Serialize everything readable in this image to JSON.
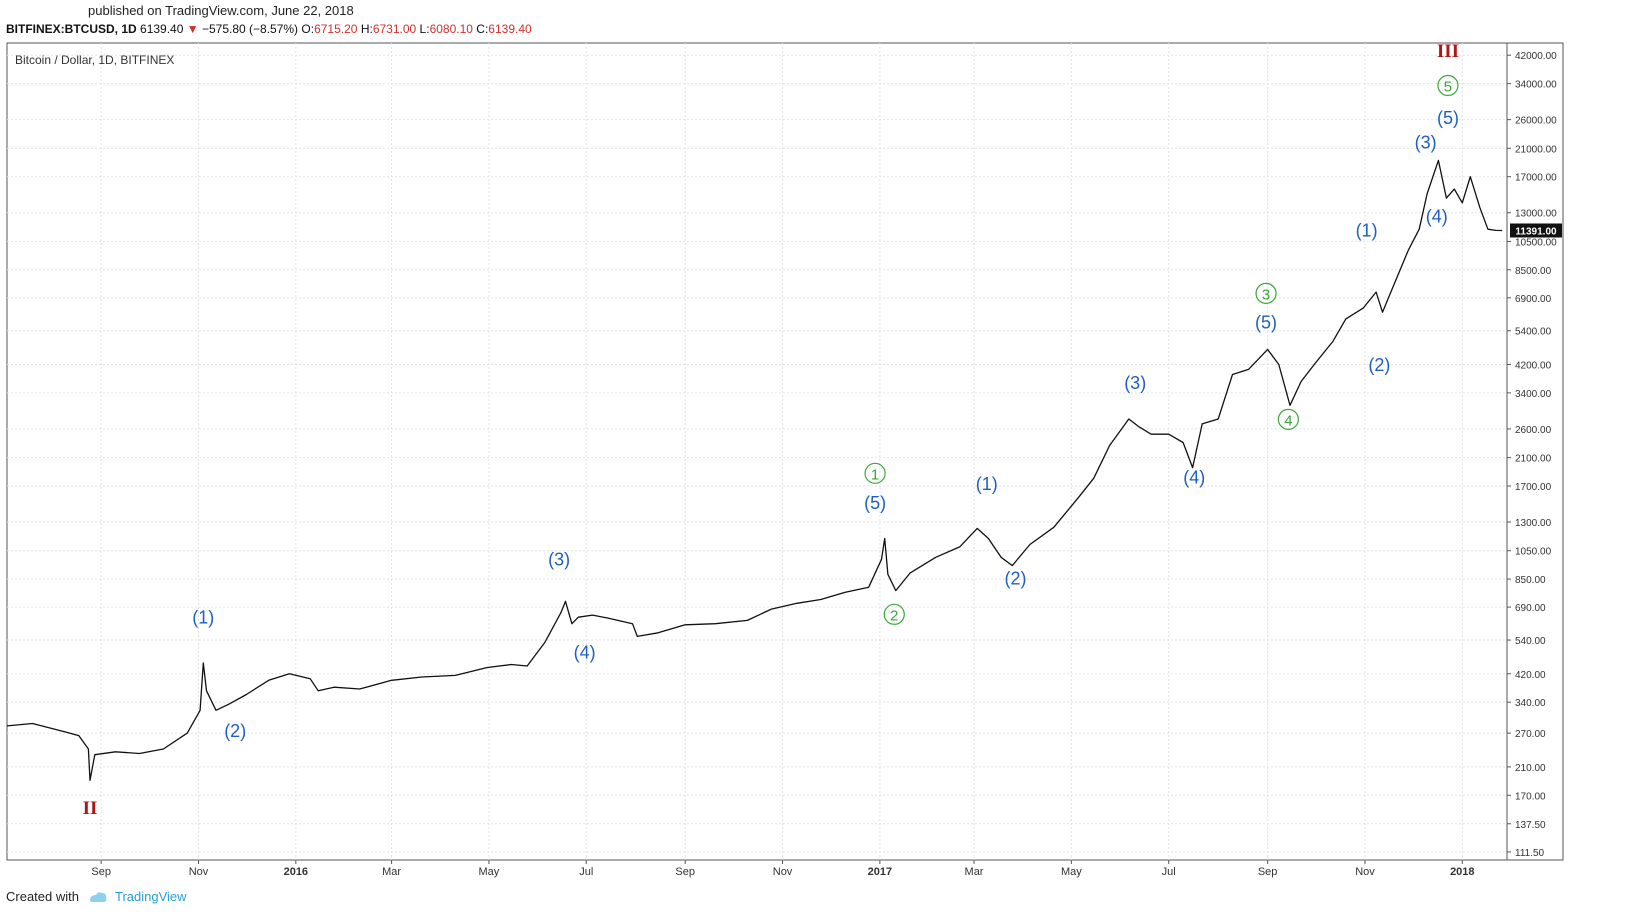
{
  "header": {
    "published": "published on TradingView.com, June 22, 2018",
    "symbol": "BITFINEX:BTCUSD, 1D",
    "last": "6139.40",
    "change": "−575.80 (−8.57%)",
    "o_label": "O:",
    "o_val": "6715.20",
    "h_label": "H:",
    "h_val": "6731.00",
    "l_label": "L:",
    "l_val": "6080.10",
    "c_label": "C:",
    "c_val": "6139.40"
  },
  "footer": {
    "created_with": "Created with",
    "brand": "TradingView"
  },
  "chart_data": {
    "type": "line",
    "title": "Bitcoin / Dollar, 1D, BITFINEX",
    "y_scale": "log",
    "ylim": [
      105,
      46000
    ],
    "xlim": [
      "2015-07-04",
      "2018-01-29"
    ],
    "y_ticks": [
      42000,
      34000,
      26000,
      21000,
      17000,
      13000,
      10500,
      8500,
      6900,
      5400,
      4200,
      3400,
      2600,
      2100,
      1700,
      1300,
      1050,
      850,
      690,
      540,
      420,
      340,
      270,
      210,
      170,
      137.5,
      111.5
    ],
    "y_tick_labels": [
      "42000.00",
      "34000.00",
      "26000.00",
      "21000.00",
      "17000.00",
      "13000.00",
      "10500.00",
      "8500.00",
      "6900.00",
      "5400.00",
      "4200.00",
      "3400.00",
      "2600.00",
      "2100.00",
      "1700.00",
      "1300.00",
      "1050.00",
      "850.00",
      "690.00",
      "540.00",
      "420.00",
      "340.00",
      "270.00",
      "210.00",
      "170.00",
      "137.50",
      "111.50"
    ],
    "x_ticks": [
      {
        "date": "2015-09-01",
        "label": "Sep",
        "bold": false
      },
      {
        "date": "2015-11-01",
        "label": "Nov",
        "bold": false
      },
      {
        "date": "2016-01-01",
        "label": "2016",
        "bold": true
      },
      {
        "date": "2016-03-01",
        "label": "Mar",
        "bold": false
      },
      {
        "date": "2016-05-01",
        "label": "May",
        "bold": false
      },
      {
        "date": "2016-07-01",
        "label": "Jul",
        "bold": false
      },
      {
        "date": "2016-09-01",
        "label": "Sep",
        "bold": false
      },
      {
        "date": "2016-11-01",
        "label": "Nov",
        "bold": false
      },
      {
        "date": "2017-01-01",
        "label": "2017",
        "bold": true
      },
      {
        "date": "2017-03-01",
        "label": "Mar",
        "bold": false
      },
      {
        "date": "2017-05-01",
        "label": "May",
        "bold": false
      },
      {
        "date": "2017-07-01",
        "label": "Jul",
        "bold": false
      },
      {
        "date": "2017-09-01",
        "label": "Sep",
        "bold": false
      },
      {
        "date": "2017-11-01",
        "label": "Nov",
        "bold": false
      },
      {
        "date": "2018-01-01",
        "label": "2018",
        "bold": true
      }
    ],
    "grid": true,
    "last_price_label": "11391.00",
    "last_price": 11391,
    "series": [
      {
        "x": [
          "2015-07-04",
          "2015-07-20",
          "2015-08-10",
          "2015-08-18",
          "2015-08-24",
          "2015-08-25",
          "2015-08-28",
          "2015-09-10",
          "2015-09-25",
          "2015-10-10",
          "2015-10-25",
          "2015-11-02",
          "2015-11-04",
          "2015-11-06",
          "2015-11-12",
          "2015-11-20",
          "2015-12-01",
          "2015-12-15",
          "2015-12-28",
          "2016-01-10",
          "2016-01-15",
          "2016-01-25",
          "2016-02-10",
          "2016-03-01",
          "2016-03-20",
          "2016-04-10",
          "2016-04-30",
          "2016-05-15",
          "2016-05-25",
          "2016-06-05",
          "2016-06-15",
          "2016-06-18",
          "2016-06-22",
          "2016-06-26",
          "2016-07-05",
          "2016-07-15",
          "2016-07-30",
          "2016-08-02",
          "2016-08-15",
          "2016-09-01",
          "2016-09-20",
          "2016-10-10",
          "2016-10-25",
          "2016-11-10",
          "2016-11-25",
          "2016-12-10",
          "2016-12-25",
          "2017-01-02",
          "2017-01-04",
          "2017-01-06",
          "2017-01-11",
          "2017-01-20",
          "2017-02-05",
          "2017-02-20",
          "2017-03-03",
          "2017-03-10",
          "2017-03-18",
          "2017-03-25",
          "2017-04-05",
          "2017-04-20",
          "2017-05-05",
          "2017-05-15",
          "2017-05-25",
          "2017-06-06",
          "2017-06-12",
          "2017-06-20",
          "2017-07-01",
          "2017-07-10",
          "2017-07-16",
          "2017-07-22",
          "2017-08-01",
          "2017-08-10",
          "2017-08-20",
          "2017-09-01",
          "2017-09-08",
          "2017-09-15",
          "2017-09-22",
          "2017-10-01",
          "2017-10-12",
          "2017-10-20",
          "2017-10-31",
          "2017-11-08",
          "2017-11-12",
          "2017-11-20",
          "2017-11-28",
          "2017-12-05",
          "2017-12-10",
          "2017-12-17",
          "2017-12-22",
          "2017-12-27",
          "2018-01-01",
          "2018-01-06",
          "2018-01-12",
          "2018-01-17",
          "2018-01-22",
          "2018-01-26"
        ],
        "y": [
          285,
          290,
          272,
          265,
          240,
          190,
          230,
          235,
          232,
          240,
          270,
          320,
          455,
          370,
          320,
          335,
          360,
          400,
          420,
          405,
          370,
          380,
          375,
          400,
          410,
          415,
          440,
          450,
          445,
          530,
          660,
          720,
          610,
          640,
          650,
          635,
          610,
          555,
          570,
          605,
          610,
          625,
          680,
          710,
          730,
          770,
          800,
          985,
          1150,
          880,
          780,
          890,
          1000,
          1080,
          1240,
          1150,
          1000,
          940,
          1100,
          1250,
          1550,
          1800,
          2300,
          2800,
          2650,
          2500,
          2500,
          2350,
          1950,
          2700,
          2800,
          3900,
          4050,
          4700,
          4200,
          3100,
          3700,
          4250,
          5000,
          5900,
          6400,
          7200,
          6200,
          7800,
          9800,
          11500,
          15000,
          19200,
          14500,
          15500,
          14000,
          17000,
          13500,
          11500,
          11400,
          11391
        ]
      }
    ],
    "annotations": [
      {
        "text": "(1)",
        "date": "2015-11-04",
        "price": 610,
        "style": "blue"
      },
      {
        "text": "(2)",
        "date": "2015-11-24",
        "price": 262,
        "style": "blue"
      },
      {
        "text": "(3)",
        "date": "2016-06-14",
        "price": 940,
        "style": "blue"
      },
      {
        "text": "(4)",
        "date": "2016-06-30",
        "price": 470,
        "style": "blue"
      },
      {
        "text": "(5)",
        "date": "2016-12-29",
        "price": 1435,
        "style": "blue"
      },
      {
        "text": "1",
        "date": "2016-12-29",
        "price": 1800,
        "style": "green"
      },
      {
        "text": "2",
        "date": "2017-01-10",
        "price": 630,
        "style": "green"
      },
      {
        "text": "(1)",
        "date": "2017-03-09",
        "price": 1650,
        "style": "blue"
      },
      {
        "text": "(2)",
        "date": "2017-03-27",
        "price": 815,
        "style": "blue"
      },
      {
        "text": "(3)",
        "date": "2017-06-10",
        "price": 3500,
        "style": "blue"
      },
      {
        "text": "(4)",
        "date": "2017-07-17",
        "price": 1730,
        "style": "blue"
      },
      {
        "text": "(5)",
        "date": "2017-08-31",
        "price": 5500,
        "style": "blue"
      },
      {
        "text": "3",
        "date": "2017-08-31",
        "price": 6870,
        "style": "green"
      },
      {
        "text": "4",
        "date": "2017-09-14",
        "price": 2690,
        "style": "green"
      },
      {
        "text": "(1)",
        "date": "2017-11-02",
        "price": 10900,
        "style": "blue"
      },
      {
        "text": "(2)",
        "date": "2017-11-10",
        "price": 4000,
        "style": "blue"
      },
      {
        "text": "(3)",
        "date": "2017-12-09",
        "price": 21000,
        "style": "blue"
      },
      {
        "text": "(4)",
        "date": "2017-12-16",
        "price": 12100,
        "style": "blue"
      },
      {
        "text": "(5)",
        "date": "2017-12-23",
        "price": 25200,
        "style": "blue"
      },
      {
        "text": "5",
        "date": "2017-12-23",
        "price": 32300,
        "style": "green"
      },
      {
        "text": "III",
        "date": "2017-12-23",
        "price": 41500,
        "style": "red"
      },
      {
        "text": "II",
        "date": "2015-08-25",
        "price": 148,
        "style": "red"
      }
    ]
  }
}
